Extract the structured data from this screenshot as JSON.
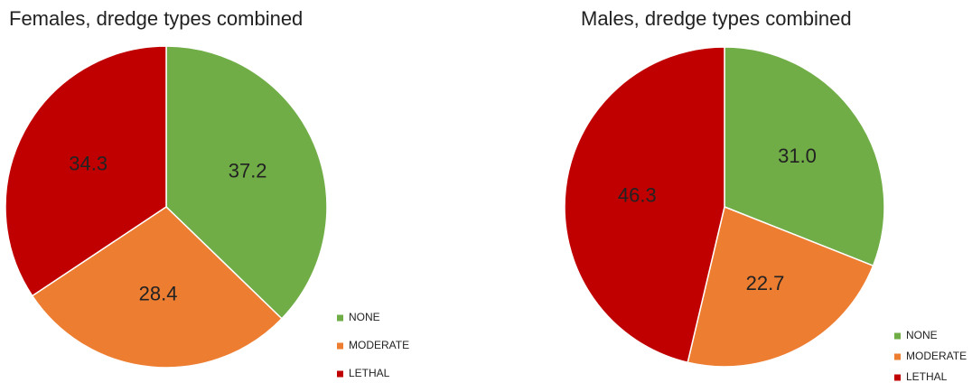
{
  "chart_data": [
    {
      "type": "pie",
      "title": "Females, dredge types combined",
      "categories": [
        "NONE",
        "MODERATE",
        "LETHAL"
      ],
      "values": [
        37.2,
        28.4,
        34.3
      ],
      "value_labels": [
        "37.2",
        "28.4",
        "34.3"
      ],
      "colors": [
        "#70ad47",
        "#ed7d31",
        "#c00000"
      ]
    },
    {
      "type": "pie",
      "title": "Males, dredge types combined",
      "categories": [
        "NONE",
        "MODERATE",
        "LETHAL"
      ],
      "values": [
        31.0,
        22.7,
        46.3
      ],
      "value_labels": [
        "31.0",
        "22.7",
        "46.3"
      ],
      "colors": [
        "#70ad47",
        "#ed7d31",
        "#c00000"
      ]
    }
  ]
}
